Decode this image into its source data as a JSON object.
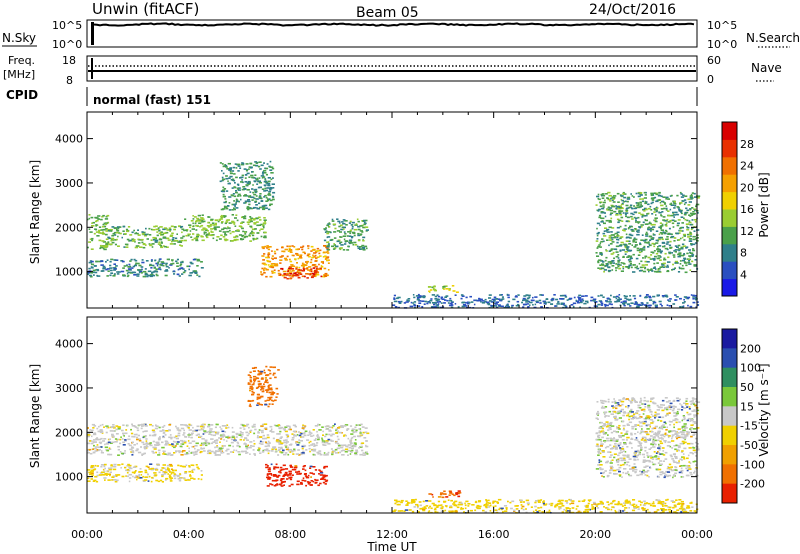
{
  "header": {
    "title": "Unwin (fitACF)",
    "beam": "Beam 05",
    "date": "24/Oct/2016"
  },
  "nsky_panel": {
    "left_label": "N.Sky",
    "left_ticks": [
      "10^5",
      "10^0"
    ],
    "right_ticks": [
      "10^5",
      "10^0"
    ],
    "right_label": "N.Search"
  },
  "freq_panel": {
    "left_label_1": "Freq.",
    "left_label_2": "[MHz]",
    "left_ticks": [
      "18",
      "8"
    ],
    "right_ticks": [
      "60",
      "0"
    ],
    "right_label": "Nave",
    "cpid_label": "CPID",
    "cpid_value": "normal (fast) 151"
  },
  "axes": {
    "ylabel": "Slant Range [km]",
    "xlabel": "Time UT",
    "x_ticks": [
      "00:00",
      "04:00",
      "08:00",
      "12:00",
      "16:00",
      "20:00",
      "00:00"
    ],
    "y_ticks": [
      "1000",
      "2000",
      "3000",
      "4000"
    ],
    "xlim_hours": [
      0,
      24
    ],
    "ylim_km": [
      180,
      4600
    ]
  },
  "power_colorbar": {
    "label": "Power [dB]",
    "ticks": [
      "4",
      "8",
      "12",
      "16",
      "20",
      "24",
      "28"
    ],
    "colors": [
      "#1a1ae6",
      "#2a4fc0",
      "#2f7f8a",
      "#4aa04a",
      "#9acd32",
      "#f0d000",
      "#f5a000",
      "#f07000",
      "#e83000",
      "#d80000"
    ]
  },
  "velocity_colorbar": {
    "label": "Velocity [m s⁻¹]",
    "ticks": [
      "200",
      "100",
      "50",
      "15",
      "-15",
      "-50",
      "-100",
      "-200"
    ],
    "colors": [
      "#1a1aa0",
      "#2a4fb0",
      "#2f8f60",
      "#7ac83a",
      "#c8c8c8",
      "#f0d000",
      "#f0a000",
      "#f07000",
      "#e82000"
    ]
  },
  "chart_data": [
    {
      "type": "heatmap",
      "name": "power",
      "regions": [
        {
          "t": [
            0.0,
            0.8
          ],
          "r": [
            1500,
            2300
          ],
          "level": 14
        },
        {
          "t": [
            0.8,
            3.8
          ],
          "r": [
            1550,
            2050
          ],
          "level": 13
        },
        {
          "t": [
            3.8,
            7.0
          ],
          "r": [
            1700,
            2300
          ],
          "level": 14
        },
        {
          "t": [
            6.8,
            9.5
          ],
          "r": [
            900,
            1600
          ],
          "level": 22
        },
        {
          "t": [
            7.5,
            9.2
          ],
          "r": [
            850,
            1100
          ],
          "level": 28
        },
        {
          "t": [
            9.3,
            11.0
          ],
          "r": [
            1500,
            2200
          ],
          "level": 12
        },
        {
          "t": [
            0.0,
            4.5
          ],
          "r": [
            900,
            1300
          ],
          "level": 10
        },
        {
          "t": [
            5.2,
            7.3
          ],
          "r": [
            2400,
            3500
          ],
          "level": 11
        },
        {
          "t": [
            12.0,
            24.0
          ],
          "r": [
            200,
            500
          ],
          "level": 8
        },
        {
          "t": [
            20.0,
            24.0
          ],
          "r": [
            1000,
            2800
          ],
          "level": 12
        },
        {
          "t": [
            13.4,
            14.6
          ],
          "r": [
            550,
            700
          ],
          "level": 16
        }
      ]
    },
    {
      "type": "heatmap",
      "name": "velocity",
      "regions": [
        {
          "t": [
            0.0,
            11.0
          ],
          "r": [
            1500,
            2200
          ],
          "level": 0
        },
        {
          "t": [
            7.0,
            9.4
          ],
          "r": [
            800,
            1300
          ],
          "level": -220
        },
        {
          "t": [
            6.3,
            7.5
          ],
          "r": [
            2600,
            3500
          ],
          "level": -150
        },
        {
          "t": [
            0.0,
            4.5
          ],
          "r": [
            900,
            1300
          ],
          "level": -20
        },
        {
          "t": [
            13.3,
            14.6
          ],
          "r": [
            550,
            700
          ],
          "level": -200
        },
        {
          "t": [
            12.0,
            24.0
          ],
          "r": [
            200,
            500
          ],
          "level": -30
        },
        {
          "t": [
            20.0,
            24.0
          ],
          "r": [
            1000,
            2800
          ],
          "level": 0
        }
      ]
    }
  ]
}
